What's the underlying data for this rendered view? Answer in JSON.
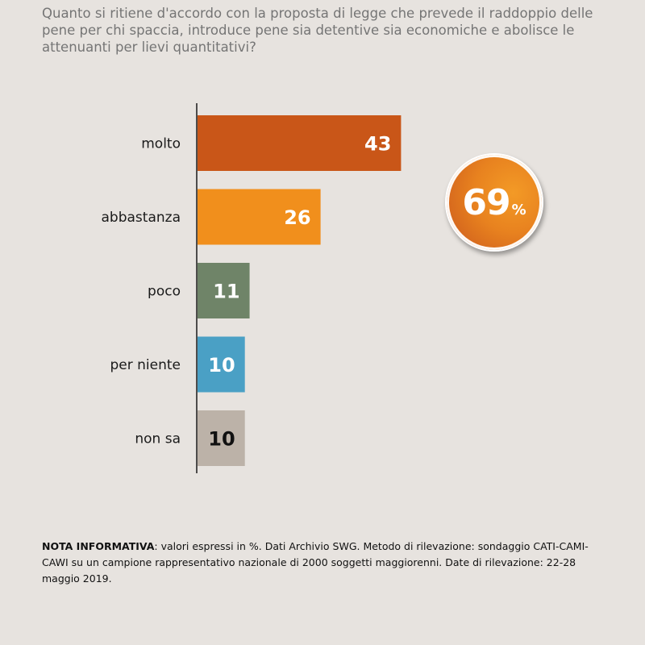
{
  "title": "Quanto si ritiene d'accordo con la proposta di legge che prevede il raddoppio delle pene per chi spaccia, introduce pene sia detentive sia economiche e abolisce le attenuanti per lievi quantitativi?",
  "summary_badge": {
    "value": "69",
    "unit": "%"
  },
  "note": {
    "label": "NOTA INFORMATIVA",
    "text": ": valori espressi in %. Dati Archivio SWG. Metodo di rilevazione: sondaggio CATI-CAMI-CAWI su un campione rappresentativo nazionale di 2000 soggetti maggiorenni. Date di rilevazione: 22-28 maggio 2019."
  },
  "chart_data": {
    "type": "bar",
    "orientation": "horizontal",
    "categories": [
      "molto",
      "abbastanza",
      "poco",
      "per niente",
      "non sa"
    ],
    "values": [
      43,
      26,
      11,
      10,
      10
    ],
    "colors": [
      "#c95618",
      "#f18f1c",
      "#6f8468",
      "#4aa0c5",
      "#bcb2a8"
    ],
    "label_colors": [
      "#ffffff",
      "#ffffff",
      "#ffffff",
      "#ffffff",
      "#111111"
    ],
    "xlim": [
      0,
      100
    ],
    "grid": false
  }
}
